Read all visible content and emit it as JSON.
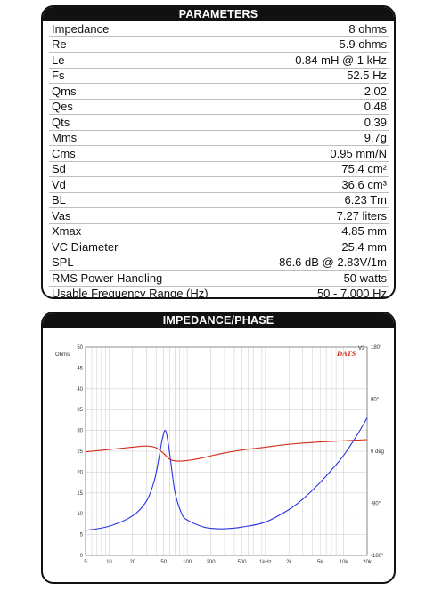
{
  "parameters": {
    "header": "PARAMETERS",
    "rows": [
      {
        "name": "Impedance",
        "value": "8 ohms"
      },
      {
        "name": "Re",
        "value": "5.9 ohms"
      },
      {
        "name": "Le",
        "value": "0.84 mH @ 1 kHz"
      },
      {
        "name": "Fs",
        "value": "52.5 Hz"
      },
      {
        "name": "Qms",
        "value": "2.02"
      },
      {
        "name": "Qes",
        "value": "0.48"
      },
      {
        "name": "Qts",
        "value": "0.39"
      },
      {
        "name": "Mms",
        "value": "9.7g"
      },
      {
        "name": "Cms",
        "value": "0.95 mm/N"
      },
      {
        "name": "Sd",
        "value": "75.4 cm²"
      },
      {
        "name": "Vd",
        "value": "36.6 cm³"
      },
      {
        "name": "BL",
        "value": "6.23 Tm"
      },
      {
        "name": "Vas",
        "value": "7.27 liters"
      },
      {
        "name": "Xmax",
        "value": "4.85 mm"
      },
      {
        "name": "VC Diameter",
        "value": "25.4 mm"
      },
      {
        "name": "SPL",
        "value": "86.6 dB @ 2.83V/1m"
      },
      {
        "name": "RMS Power Handling",
        "value": "50 watts"
      },
      {
        "name": "Usable Frequency Range (Hz)",
        "value": "50 - 7,000 Hz"
      }
    ]
  },
  "impedance_phase": {
    "header": "IMPEDANCE/PHASE",
    "left_axis_label": "Ohms",
    "logo": "DATS",
    "logo_small": "V2",
    "colors": {
      "impedance": "#2a35e0",
      "phase": "#d42a1a",
      "grid": "#c9c9c9",
      "frame": "#111111"
    }
  },
  "chart_data": {
    "type": "line",
    "xscale": "log",
    "xlim": [
      5,
      20000
    ],
    "x_ticks": [
      {
        "value": 5,
        "label": "5"
      },
      {
        "value": 10,
        "label": "10"
      },
      {
        "value": 20,
        "label": "20"
      },
      {
        "value": 50,
        "label": "50"
      },
      {
        "value": 100,
        "label": "100"
      },
      {
        "value": 200,
        "label": "200"
      },
      {
        "value": 500,
        "label": "500"
      },
      {
        "value": 1000,
        "label": "1kHz"
      },
      {
        "value": 2000,
        "label": "2k"
      },
      {
        "value": 5000,
        "label": "5k"
      },
      {
        "value": 10000,
        "label": "10k"
      },
      {
        "value": 20000,
        "label": "20k"
      }
    ],
    "ylim_left": [
      0,
      50
    ],
    "yticks_left": [
      "0",
      "5",
      "10",
      "15",
      "20",
      "25",
      "30",
      "35",
      "40",
      "45",
      "50"
    ],
    "ylim_right": [
      -180,
      180
    ],
    "yticks_right": [
      {
        "value": 180,
        "label": "180°"
      },
      {
        "value": 90,
        "label": "90°"
      },
      {
        "value": 0,
        "label": "0 deg"
      },
      {
        "value": -90,
        "label": "-90°"
      },
      {
        "value": -180,
        "label": "-180°"
      }
    ],
    "series": [
      {
        "axis": "left",
        "x": [
          5,
          10,
          20,
          30,
          38,
          44,
          48,
          52.5,
          57,
          62,
          70,
          85,
          100,
          150,
          200,
          300,
          500,
          1000,
          2000,
          3000,
          5000,
          7000,
          10000,
          15000,
          20000
        ],
        "y": [
          6,
          7,
          9.5,
          13,
          18,
          24,
          28,
          30,
          27,
          22,
          15,
          10,
          8.5,
          7,
          6.5,
          6.4,
          6.8,
          8,
          11,
          13.5,
          17.5,
          20.5,
          24,
          29,
          33
        ]
      },
      {
        "axis": "right",
        "x": [
          5,
          10,
          20,
          30,
          40,
          50,
          60,
          75,
          100,
          150,
          200,
          300,
          500,
          1000,
          2000,
          5000,
          10000,
          20000
        ],
        "y": [
          -1,
          3,
          7,
          9,
          6,
          -4,
          -14,
          -17,
          -16,
          -12,
          -8,
          -3,
          2,
          7,
          12,
          16,
          18,
          20
        ]
      }
    ]
  }
}
